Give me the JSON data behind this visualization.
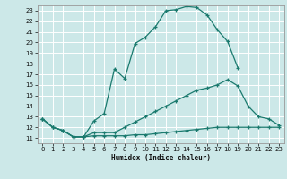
{
  "xlabel": "Humidex (Indice chaleur)",
  "bg_color": "#cce8e8",
  "grid_color": "#ffffff",
  "line_color": "#1a7a6e",
  "xlim": [
    -0.5,
    23.5
  ],
  "ylim": [
    10.5,
    23.5
  ],
  "xticks": [
    0,
    1,
    2,
    3,
    4,
    5,
    6,
    7,
    8,
    9,
    10,
    11,
    12,
    13,
    14,
    15,
    16,
    17,
    18,
    19,
    20,
    21,
    22,
    23
  ],
  "yticks": [
    11,
    12,
    13,
    14,
    15,
    16,
    17,
    18,
    19,
    20,
    21,
    22,
    23
  ],
  "line1_x": [
    0,
    1,
    2,
    3,
    4,
    5,
    6,
    7,
    8,
    9,
    10,
    11,
    12,
    13,
    14,
    15,
    16,
    17,
    18,
    19
  ],
  "line1_y": [
    12.8,
    12.0,
    11.7,
    11.1,
    11.1,
    12.6,
    13.3,
    17.5,
    16.6,
    19.9,
    20.5,
    21.5,
    23.0,
    23.1,
    23.4,
    23.3,
    22.6,
    21.2,
    20.1,
    17.6
  ],
  "line2_x": [
    0,
    1,
    2,
    3,
    4,
    5,
    6,
    7,
    8,
    9,
    10,
    11,
    12,
    13,
    14,
    15,
    16,
    17,
    18,
    19,
    20,
    21,
    22,
    23
  ],
  "line2_y": [
    12.8,
    12.0,
    11.7,
    11.1,
    11.1,
    11.5,
    11.5,
    11.5,
    12.0,
    12.5,
    13.0,
    13.5,
    14.0,
    14.5,
    15.0,
    15.5,
    15.7,
    16.0,
    16.5,
    15.9,
    14.0,
    13.0,
    12.8,
    12.2
  ],
  "line3_x": [
    0,
    1,
    2,
    3,
    4,
    5,
    6,
    7,
    8,
    9,
    10,
    11,
    12,
    13,
    14,
    15,
    16,
    17,
    18,
    19,
    20,
    21,
    22,
    23
  ],
  "line3_y": [
    12.8,
    12.0,
    11.7,
    11.1,
    11.1,
    11.2,
    11.2,
    11.2,
    11.2,
    11.3,
    11.3,
    11.4,
    11.5,
    11.6,
    11.7,
    11.8,
    11.9,
    12.0,
    12.0,
    12.0,
    12.0,
    12.0,
    12.0,
    12.0
  ]
}
